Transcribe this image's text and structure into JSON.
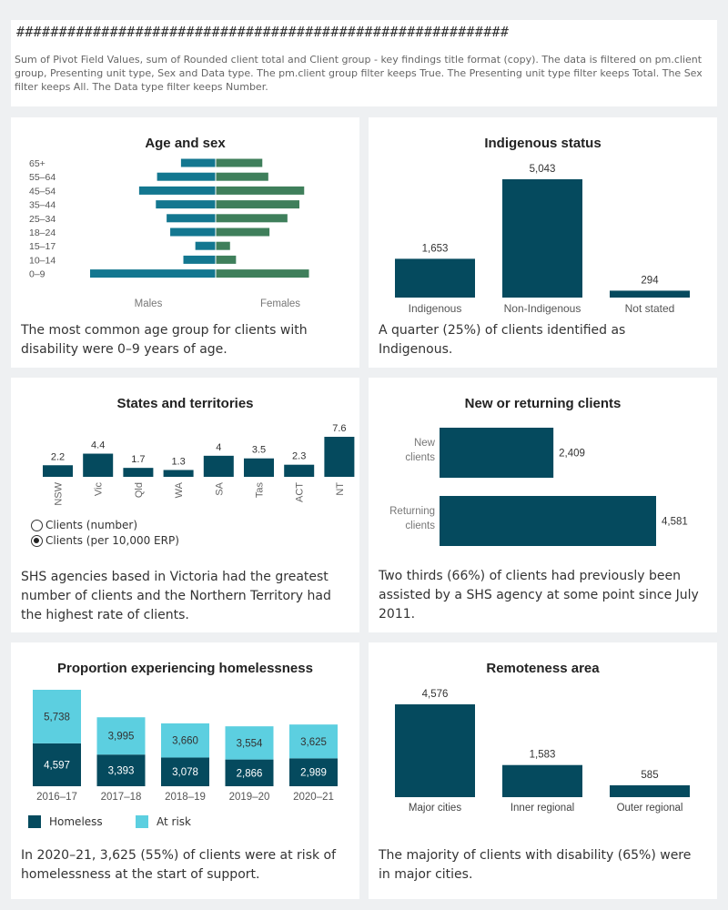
{
  "header": {
    "hashes": "##########################################################",
    "note": "Sum of Pivot Field Values, sum of Rounded client total and Client group - key findings title format (copy). The data is filtered on pm.client group, Presenting unit type, Sex and Data type. The pm.client group filter keeps True. The Presenting unit type filter keeps Total. The Sex filter keeps All. The Data type filter keeps Number."
  },
  "colors": {
    "dark": "#054a5e",
    "teal": "#137790",
    "green": "#3f7f5b",
    "light": "#5ccfe0"
  },
  "panels": {
    "age": {
      "title": "Age and sex",
      "finding": "The most common age group for clients with disability were 0–9 years of age."
    },
    "indigenous": {
      "title": "Indigenous status",
      "finding": "A quarter (25%) of clients identified as Indigenous."
    },
    "states": {
      "title": "States and territories",
      "finding": "SHS agencies based in Victoria had the greatest number of clients and the Northern Territory had the highest rate of clients.",
      "radio_number": "Clients (number)",
      "radio_rate": "Clients (per 10,000 ERP)"
    },
    "returning": {
      "title": "New or returning clients",
      "finding": "Two thirds (66%) of clients  had previously been assisted by a SHS agency at some point since July 2011."
    },
    "homelessness": {
      "title": "Proportion experiencing homelessness",
      "finding": "In 2020–21, 3,625 (55%) of clients were at risk of homelessness at the start of support.",
      "legend_homeless": "Homeless",
      "legend_atrisk": "At risk"
    },
    "remoteness": {
      "title": "Remoteness area",
      "finding": "The majority of clients with disability (65%) were in major cities."
    }
  },
  "chart_data": [
    {
      "id": "age",
      "type": "bar",
      "title": "Age and sex",
      "orientation": "horizontal-pyramid",
      "categories": [
        "65+",
        "55–64",
        "45–54",
        "35–44",
        "25–34",
        "18–24",
        "15–17",
        "10–14",
        "0–9"
      ],
      "series": [
        {
          "name": "Males",
          "values": [
            290,
            490,
            640,
            500,
            410,
            380,
            170,
            270,
            1050
          ]
        },
        {
          "name": "Females",
          "values": [
            390,
            440,
            740,
            700,
            600,
            450,
            120,
            170,
            780
          ]
        }
      ]
    },
    {
      "id": "indigenous",
      "type": "bar",
      "title": "Indigenous status",
      "categories": [
        "Indigenous",
        "Non-Indigenous",
        "Not stated"
      ],
      "values": [
        1653,
        5043,
        294
      ],
      "labels": [
        "1,653",
        "5,043",
        "294"
      ]
    },
    {
      "id": "states",
      "type": "bar",
      "title": "States and territories",
      "categories": [
        "NSW",
        "Vic",
        "Qld",
        "WA",
        "SA",
        "Tas",
        "ACT",
        "NT"
      ],
      "values": [
        2.2,
        4.4,
        1.7,
        1.3,
        4,
        3.5,
        2.3,
        7.6
      ],
      "labels": [
        "2.2",
        "4.4",
        "1.7",
        "1.3",
        "4",
        "3.5",
        "2.3",
        "7.6"
      ]
    },
    {
      "id": "returning",
      "type": "bar",
      "title": "New or returning clients",
      "orientation": "horizontal",
      "categories": [
        [
          "New",
          "clients"
        ],
        [
          "Returning",
          "clients"
        ]
      ],
      "values": [
        2409,
        4581
      ],
      "labels": [
        "2,409",
        "4,581"
      ]
    },
    {
      "id": "homelessness",
      "type": "bar",
      "title": "Proportion experiencing homelessness",
      "stacked": true,
      "categories": [
        "2016–17",
        "2017–18",
        "2018–19",
        "2019–20",
        "2020–21"
      ],
      "series": [
        {
          "name": "Homeless",
          "values": [
            4597,
            3393,
            3078,
            2866,
            2989
          ],
          "labels": [
            "4,597",
            "3,393",
            "3,078",
            "2,866",
            "2,989"
          ]
        },
        {
          "name": "At risk",
          "values": [
            5738,
            3995,
            3660,
            3554,
            3625
          ],
          "labels": [
            "5,738",
            "3,995",
            "3,660",
            "3,554",
            "3,625"
          ]
        }
      ]
    },
    {
      "id": "remoteness",
      "type": "bar",
      "title": "Remoteness area",
      "categories": [
        "Major cities",
        "Inner regional",
        "Outer regional"
      ],
      "values": [
        4576,
        1583,
        585
      ],
      "labels": [
        "4,576",
        "1,583",
        "585"
      ]
    }
  ]
}
